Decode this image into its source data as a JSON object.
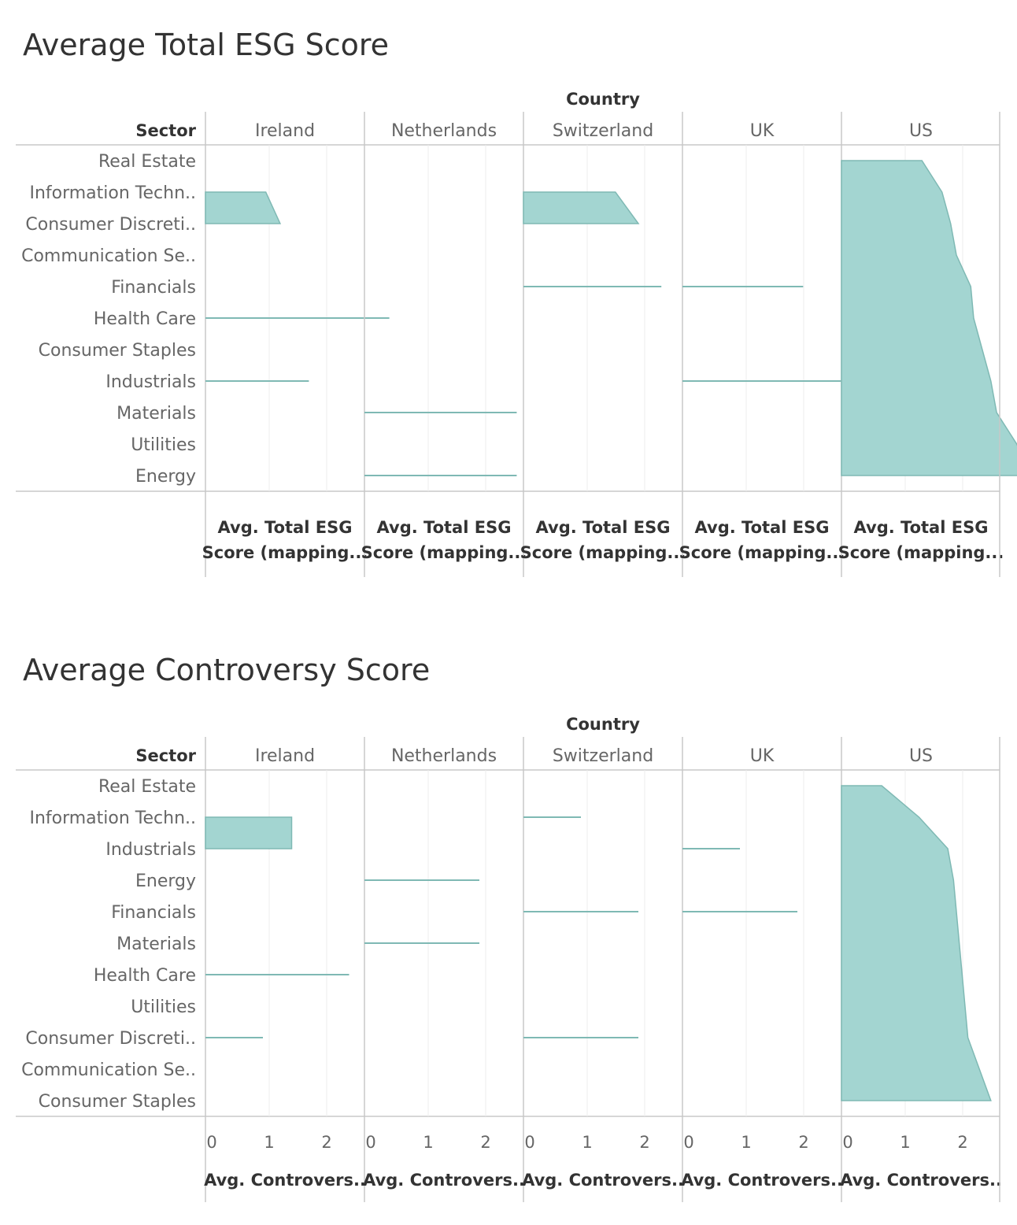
{
  "chart_data": [
    {
      "type": "area",
      "title": "Average Total ESG Score",
      "column_header": "Country",
      "row_header": "Sector",
      "countries": [
        "Ireland",
        "Netherlands",
        "Switzerland",
        "UK",
        "US"
      ],
      "sectors": [
        "Real Estate",
        "Information Techn..",
        "Consumer Discreti..",
        "Communication Se..",
        "Financials",
        "Health Care",
        "Consumer Staples",
        "Industrials",
        "Materials",
        "Utilities",
        "Energy"
      ],
      "axis_label_lines": [
        "Avg. Total ESG",
        "Score (mapping..."
      ],
      "x_tick_labels": [],
      "grid": true,
      "series": [
        {
          "name": "Ireland",
          "values": [
            null,
            1.05,
            1.3,
            null,
            null,
            3.2,
            null,
            1.8,
            null,
            null,
            null
          ]
        },
        {
          "name": "Netherlands",
          "values": [
            null,
            null,
            null,
            null,
            null,
            null,
            null,
            null,
            2.65,
            null,
            2.65
          ]
        },
        {
          "name": "Switzerland",
          "values": [
            null,
            1.6,
            2.0,
            null,
            2.4,
            null,
            null,
            null,
            null,
            null,
            null
          ]
        },
        {
          "name": "UK",
          "values": [
            null,
            null,
            null,
            null,
            2.1,
            null,
            null,
            2.85,
            null,
            null,
            null
          ]
        },
        {
          "name": "US",
          "values": [
            1.4,
            1.75,
            1.9,
            2.0,
            2.25,
            2.3,
            2.45,
            2.6,
            2.7,
            3.05,
            3.3
          ]
        }
      ]
    },
    {
      "type": "area",
      "title": "Average Controversy Score",
      "column_header": "Country",
      "row_header": "Sector",
      "countries": [
        "Ireland",
        "Netherlands",
        "Switzerland",
        "UK",
        "US"
      ],
      "sectors": [
        "Real Estate",
        "Information Techn..",
        "Industrials",
        "Energy",
        "Financials",
        "Materials",
        "Health Care",
        "Utilities",
        "Consumer Discreti..",
        "Communication Se..",
        "Consumer Staples"
      ],
      "axis_label_lines": [
        "Avg. Controvers.."
      ],
      "x_tick_labels": [
        "0",
        "1",
        "2"
      ],
      "xlim": [
        0,
        2.7
      ],
      "grid": true,
      "series": [
        {
          "name": "Ireland",
          "values": [
            null,
            1.5,
            1.5,
            null,
            null,
            null,
            2.5,
            null,
            1.0,
            null,
            null
          ]
        },
        {
          "name": "Netherlands",
          "values": [
            null,
            null,
            null,
            2.0,
            null,
            2.0,
            null,
            null,
            null,
            null,
            null
          ]
        },
        {
          "name": "Switzerland",
          "values": [
            null,
            1.0,
            null,
            null,
            2.0,
            null,
            null,
            null,
            2.0,
            null,
            null
          ]
        },
        {
          "name": "UK",
          "values": [
            null,
            null,
            1.0,
            null,
            2.0,
            null,
            null,
            null,
            null,
            null,
            null
          ]
        },
        {
          "name": "US",
          "values": [
            0.7,
            1.35,
            1.85,
            1.95,
            2.0,
            2.05,
            2.1,
            2.15,
            2.2,
            2.4,
            2.6
          ]
        }
      ]
    }
  ],
  "colors": {
    "area": "#a3d5d1",
    "line": "#7fb9b4",
    "grid": "#ececec",
    "frame": "#c8c8c8"
  }
}
